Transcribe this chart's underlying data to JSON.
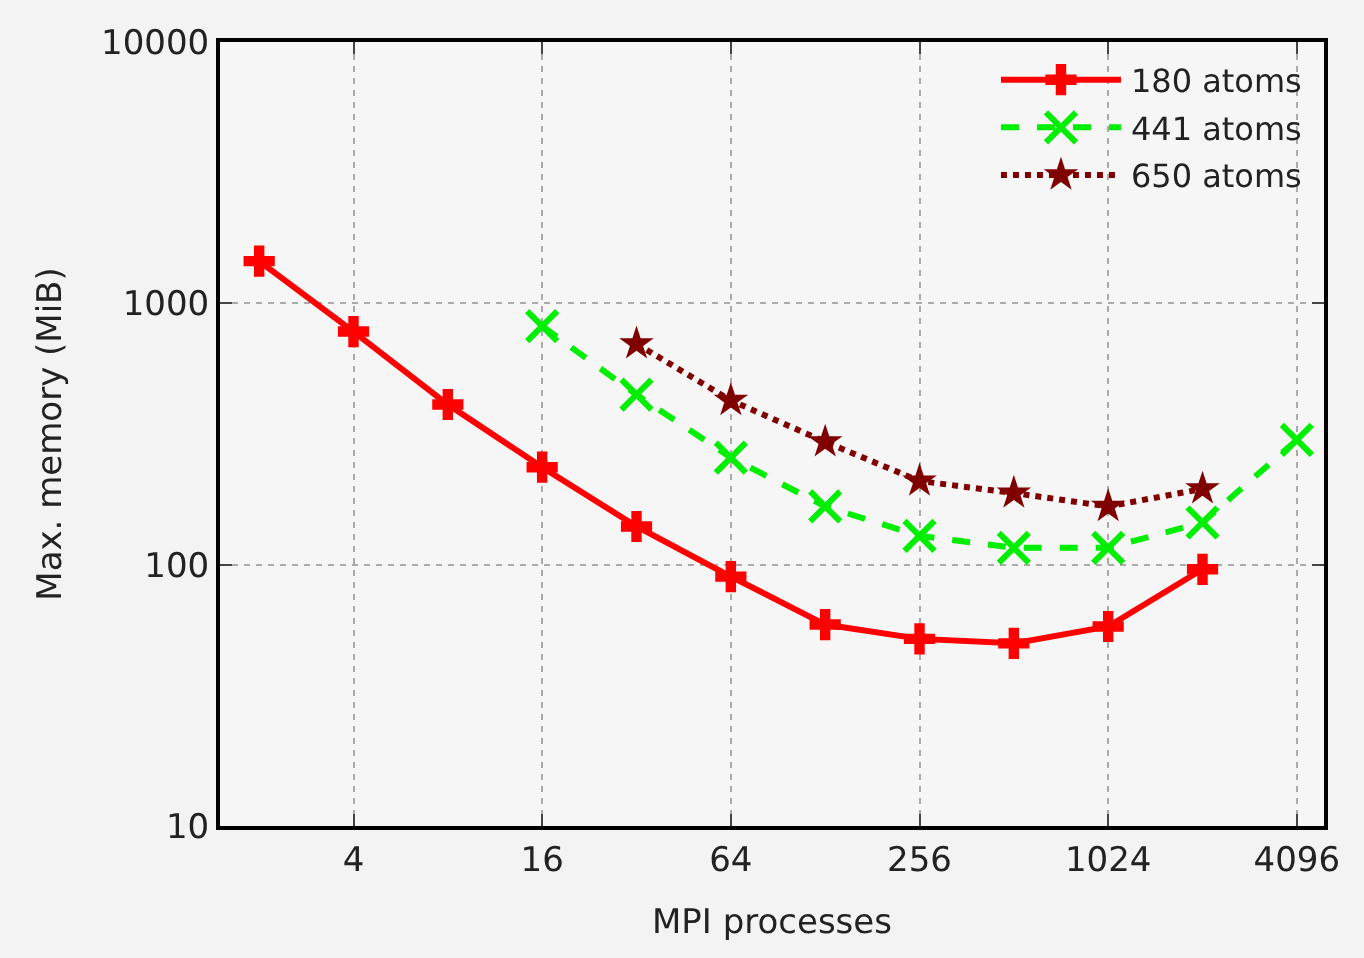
{
  "chart_data": {
    "type": "line",
    "xlabel": "MPI processes",
    "ylabel": "Max. memory (MiB)",
    "log": "xy",
    "grid": true,
    "legend": "top right",
    "xlim": [
      1.5,
      5000
    ],
    "xticks": [
      4,
      16,
      64,
      256,
      1024,
      4096
    ],
    "ylim": [
      10,
      10000
    ],
    "yticks": [
      10,
      100,
      1000,
      10000
    ],
    "series": [
      {
        "name": "180 atoms",
        "color": "#ff0000",
        "marker": "cross",
        "line_style": "solid",
        "x": [
          2,
          4,
          8,
          16,
          32,
          64,
          128,
          256,
          512,
          1024,
          2048
        ],
        "values": [
          1450,
          780,
          410,
          236,
          140,
          90,
          59,
          52,
          50,
          58,
          96
        ]
      },
      {
        "name": "441 atoms",
        "color": "#00ee00",
        "marker": "x",
        "line_style": "dashed",
        "x": [
          16,
          32,
          64,
          128,
          256,
          512,
          1024,
          2048,
          4096
        ],
        "values": [
          818,
          447,
          257,
          167,
          129,
          116,
          116,
          145,
          300
        ]
      },
      {
        "name": "650 atoms",
        "color": "#800000",
        "marker": "star",
        "line_style": "dotted",
        "x": [
          32,
          64,
          128,
          256,
          512,
          1024,
          2048
        ],
        "values": [
          700,
          425,
          295,
          209,
          188,
          167,
          195
        ]
      }
    ]
  }
}
